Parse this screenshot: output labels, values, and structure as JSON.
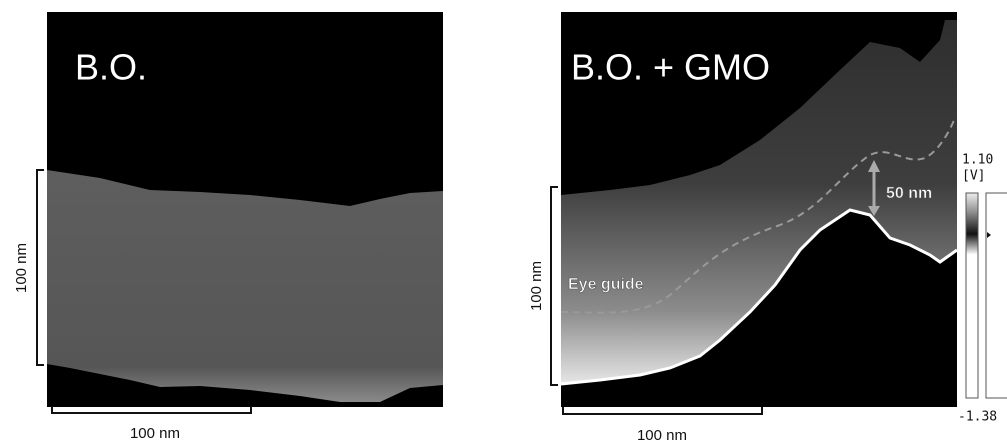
{
  "panels": [
    {
      "title": "B.O.",
      "vertical_scale": "100 nm",
      "horizontal_scale": "100 nm"
    },
    {
      "title": "B.O. + GMO",
      "vertical_scale": "100 nm",
      "horizontal_scale": "100 nm",
      "eye_guide": "Eye guide",
      "height": "50 nm"
    }
  ],
  "colorbar": {
    "max": "1.10",
    "unit": "[V]",
    "min": "-1.38"
  }
}
